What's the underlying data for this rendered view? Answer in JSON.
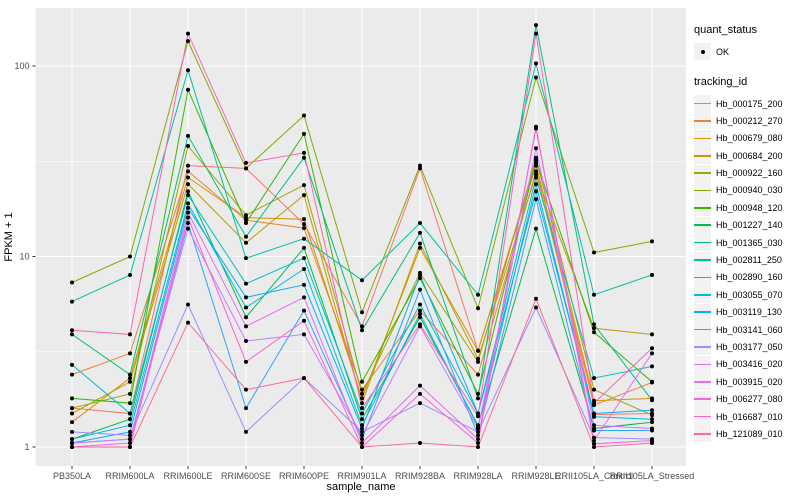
{
  "figure": {
    "x_axis_title": "sample_name",
    "y_axis_title": "FPKM + 1"
  },
  "legend": {
    "quant_status_title": "quant_status",
    "quant_status_items": [
      {
        "label": "OK"
      }
    ],
    "tracking_id_title": "tracking_id"
  },
  "chart_data": {
    "type": "line",
    "title": "",
    "xlabel": "sample_name",
    "ylabel": "FPKM + 1",
    "y_scale": "log10",
    "ylim": [
      0.93,
      205
    ],
    "grid": true,
    "legend_position": "right",
    "point_shape": "filled-circle",
    "point_color": "#000000",
    "panel_bg": "#EBEBEB",
    "grid_color": "#FFFFFF",
    "tick_color": "#333333",
    "tick_label_color": "#4D4D4D",
    "y_ticks": [
      {
        "value": 1,
        "label": "1"
      },
      {
        "value": 10,
        "label": "10"
      },
      {
        "value": 100,
        "label": "100"
      }
    ],
    "y_minor_ticks": [
      3.162,
      31.62
    ],
    "categories": [
      "PB350LA",
      "RRIM600LA",
      "RRIM600LE",
      "RRIM600SE",
      "RRIM600PE",
      "RRIM901LA",
      "RRIM928BA",
      "RRIM928LA",
      "RRIM928LE",
      "RRII105LA_Control",
      "RRII105LA_Stressed"
    ],
    "quant_status_all": "OK",
    "series": [
      {
        "name": "Hb_000175_200",
        "color": "#F8766D",
        "quant_status": "OK",
        "values": [
          1.6,
          1.5,
          30,
          29,
          14.8,
          4.3,
          29,
          3.2,
          31,
          1.48,
          1.5
        ]
      },
      {
        "name": "Hb_000212_270",
        "color": "#EA8331",
        "quant_status": "OK",
        "values": [
          2.4,
          3.1,
          28,
          15.5,
          14.1,
          2.0,
          5.2,
          2.4,
          28,
          1.66,
          2.18
        ]
      },
      {
        "name": "Hb_000679_080",
        "color": "#D89000",
        "quant_status": "OK",
        "values": [
          1.35,
          2.3,
          26,
          16,
          15.7,
          1.8,
          11.1,
          3.2,
          30,
          1.75,
          1.8
        ]
      },
      {
        "name": "Hb_000684_200",
        "color": "#C09B00",
        "quant_status": "OK",
        "values": [
          1.5,
          2.2,
          24,
          11.8,
          21,
          1.7,
          11.7,
          2.9,
          27,
          4.2,
          3.9
        ]
      },
      {
        "name": "Hb_000922_160",
        "color": "#A3A500",
        "quant_status": "OK",
        "values": [
          1.6,
          1.9,
          38,
          16.5,
          23.7,
          1.9,
          8.2,
          2.8,
          33,
          2.0,
          1.47
        ]
      },
      {
        "name": "Hb_000940_030",
        "color": "#7CAE00",
        "quant_status": "OK",
        "values": [
          7.3,
          10,
          135,
          29,
          55,
          5.1,
          30,
          5.35,
          87,
          10.5,
          12
        ]
      },
      {
        "name": "Hb_000948_120",
        "color": "#39B600",
        "quant_status": "OK",
        "values": [
          1.8,
          1.7,
          75,
          15,
          44,
          2.2,
          7.7,
          1.9,
          32,
          4.0,
          2.2
        ]
      },
      {
        "name": "Hb_001227_140",
        "color": "#00BB4E",
        "quant_status": "OK",
        "values": [
          1.1,
          1.4,
          22,
          4.8,
          11.1,
          1.4,
          4.8,
          1.3,
          14,
          1.25,
          1.35
        ]
      },
      {
        "name": "Hb_001365_030",
        "color": "#00BF7D",
        "quant_status": "OK",
        "values": [
          3.9,
          2.4,
          43,
          12.7,
          33,
          4.1,
          13.3,
          1.8,
          164,
          4.4,
          1.76
        ]
      },
      {
        "name": "Hb_002811_250",
        "color": "#00C1A3",
        "quant_status": "OK",
        "values": [
          5.8,
          8,
          95,
          9.8,
          12.4,
          7.5,
          15,
          6.3,
          103,
          6.3,
          8
        ]
      },
      {
        "name": "Hb_002890_160",
        "color": "#00BFC4",
        "quant_status": "OK",
        "values": [
          2.7,
          1.5,
          21,
          7.2,
          9.8,
          1.5,
          5.6,
          1.5,
          26,
          2.3,
          2.65
        ]
      },
      {
        "name": "Hb_003055_070",
        "color": "#00BAE0",
        "quant_status": "OK",
        "values": [
          1.1,
          1.3,
          19,
          5.4,
          8.6,
          1.3,
          5.0,
          1.28,
          24,
          1.44,
          1.4
        ]
      },
      {
        "name": "Hb_003119_130",
        "color": "#00B0F6",
        "quant_status": "OK",
        "values": [
          1.05,
          1.2,
          18,
          6.1,
          7.1,
          1.25,
          8.0,
          1.5,
          22,
          1.5,
          1.56
        ]
      },
      {
        "name": "Hb_003141_060",
        "color": "#35A2FF",
        "quant_status": "OK",
        "values": [
          1.05,
          1.1,
          15,
          1.6,
          5.2,
          1.1,
          6.7,
          1.15,
          20,
          1.22,
          1.22
        ]
      },
      {
        "name": "Hb_003177_050",
        "color": "#9590FF",
        "quant_status": "OK",
        "values": [
          1.2,
          1.15,
          5.6,
          1.2,
          2.3,
          1.2,
          1.7,
          1.2,
          5.4,
          1.12,
          1.1
        ]
      },
      {
        "name": "Hb_003416_020",
        "color": "#C77CFF",
        "quant_status": "OK",
        "values": [
          1.05,
          1.1,
          14,
          3.6,
          3.9,
          1.15,
          4.3,
          1.25,
          37,
          1.3,
          1.25
        ]
      },
      {
        "name": "Hb_003915_020",
        "color": "#E76BF3",
        "quant_status": "OK",
        "values": [
          1.0,
          1.05,
          17,
          4.3,
          6.1,
          1.05,
          2.1,
          1.1,
          47,
          1.08,
          3.1
        ]
      },
      {
        "name": "Hb_006277_080",
        "color": "#FA62DB",
        "quant_status": "OK",
        "values": [
          1.0,
          1.0,
          16,
          2.8,
          4.6,
          1.0,
          1.9,
          1.05,
          48,
          1.04,
          1.08
        ]
      },
      {
        "name": "Hb_016687_010",
        "color": "#FF62BC",
        "quant_status": "OK",
        "values": [
          4.1,
          3.9,
          148,
          31,
          35,
          1.6,
          4.4,
          1.45,
          148,
          1.7,
          3.3
        ]
      },
      {
        "name": "Hb_121089_010",
        "color": "#FF6A98",
        "quant_status": "OK",
        "values": [
          1.0,
          1.0,
          4.5,
          2.0,
          2.3,
          1.0,
          1.05,
          1.0,
          6.0,
          1.0,
          1.05
        ]
      }
    ]
  }
}
